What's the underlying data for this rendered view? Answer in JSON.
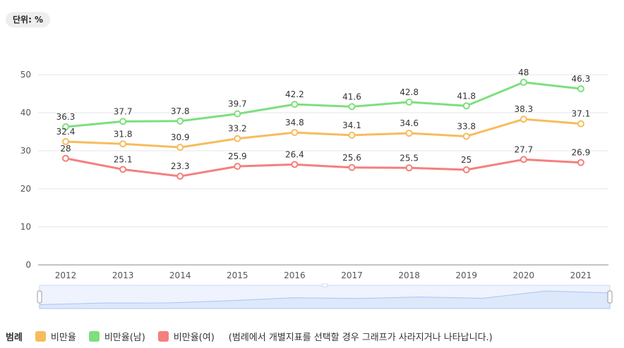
{
  "unit_label": "단위: %",
  "legend": {
    "title": "범례",
    "note": "(범례에서 개별지표를 선택할 경우 그래프가 사라지거나 나타납니다.)"
  },
  "colors": {
    "obesity": "#f7bc5d",
    "obesity_male": "#7ddf7e",
    "obesity_female": "#f47f7e",
    "grid": "#e6e6e6",
    "axis": "#888888",
    "navigator_fill": "#dde8fb",
    "navigator_line": "#aac4f5"
  },
  "chart_data": {
    "type": "line",
    "title": "",
    "xlabel": "",
    "ylabel": "",
    "ylim": [
      0,
      50
    ],
    "yticks": [
      "0",
      "10",
      "20",
      "30",
      "40",
      "50"
    ],
    "categories": [
      "2012",
      "2013",
      "2014",
      "2015",
      "2016",
      "2017",
      "2018",
      "2019",
      "2020",
      "2021"
    ],
    "series": [
      {
        "name": "비만율",
        "values": [
          32.4,
          31.8,
          30.9,
          33.2,
          34.8,
          34.1,
          34.6,
          33.8,
          38.3,
          37.1
        ],
        "labels": [
          "32.4",
          "31.8",
          "30.9",
          "33.2",
          "34.8",
          "34.1",
          "34.6",
          "33.8",
          "38.3",
          "37.1"
        ]
      },
      {
        "name": "비만율(남)",
        "values": [
          36.3,
          37.7,
          37.8,
          39.7,
          42.2,
          41.6,
          42.8,
          41.8,
          48,
          46.3
        ],
        "labels": [
          "36.3",
          "37.7",
          "37.8",
          "39.7",
          "42.2",
          "41.6",
          "42.8",
          "41.8",
          "48",
          "46.3"
        ]
      },
      {
        "name": "비만율(여)",
        "values": [
          28,
          25.1,
          23.3,
          25.9,
          26.4,
          25.6,
          25.5,
          25,
          27.7,
          26.9
        ],
        "labels": [
          "28",
          "25.1",
          "23.3",
          "25.9",
          "26.4",
          "25.6",
          "25.5",
          "25",
          "27.7",
          "26.9"
        ]
      }
    ],
    "legend_position": "bottom-left",
    "grid": true
  }
}
